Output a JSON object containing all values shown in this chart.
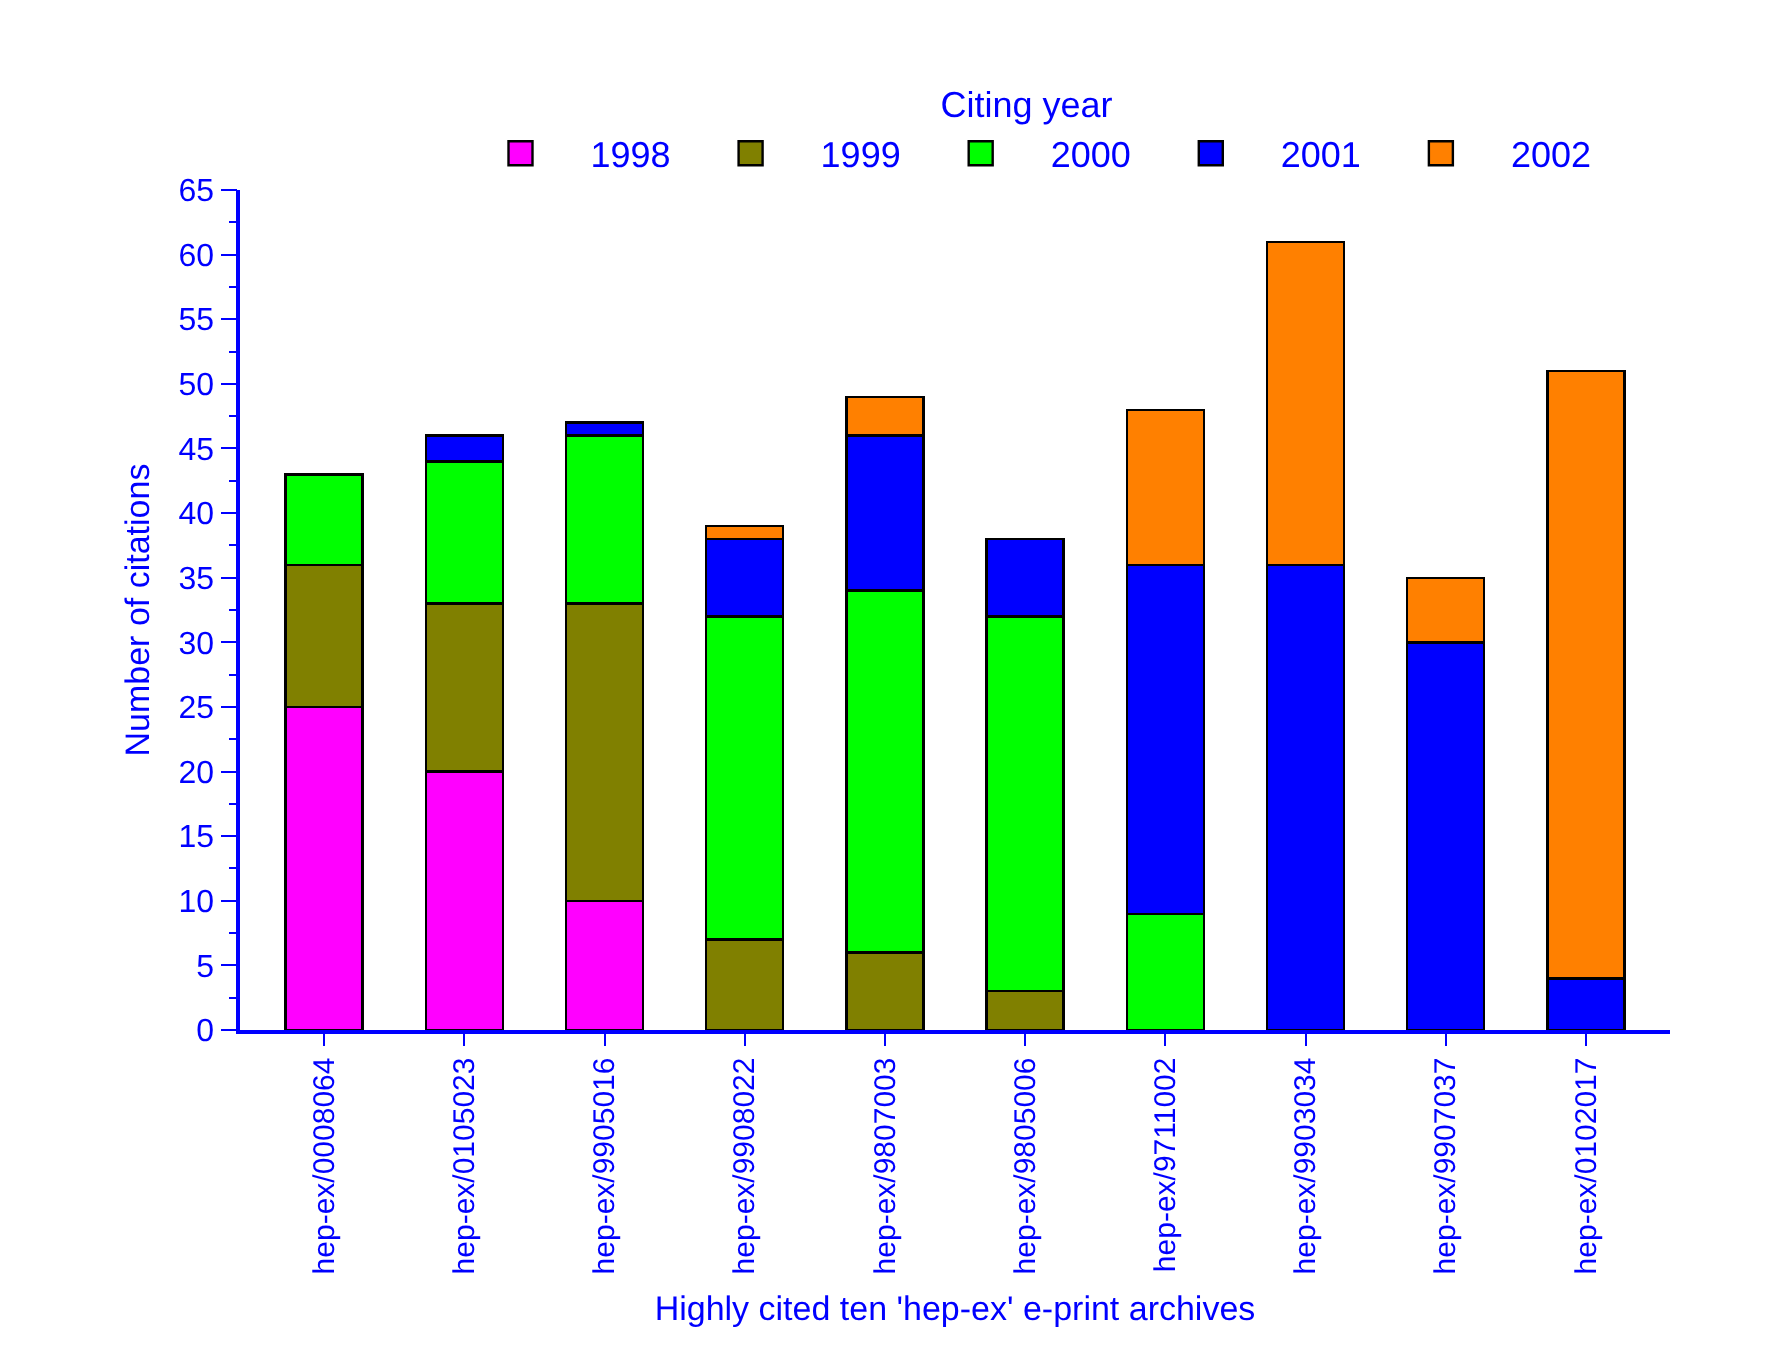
{
  "chart_data": {
    "type": "bar",
    "stacked": true,
    "xlabel": "Highly cited ten 'hep-ex' e-print archives",
    "ylabel": "Number of citations",
    "legend_title": "Citing year",
    "legend": "top",
    "categories": [
      "hep-ex/0008064",
      "hep-ex/0105023",
      "hep-ex/9905016",
      "hep-ex/9908022",
      "hep-ex/9807003",
      "hep-ex/9805006",
      "hep-ex/9711002",
      "hep-ex/9903034",
      "hep-ex/9907037",
      "hep-ex/0102017"
    ],
    "series": [
      {
        "name": "1998",
        "color": "#ff00ff",
        "values": [
          25,
          20,
          10,
          null,
          null,
          null,
          null,
          null,
          null,
          null
        ]
      },
      {
        "name": "1999",
        "color": "#808000",
        "values": [
          11,
          13,
          23,
          7,
          6,
          3,
          null,
          null,
          null,
          null
        ]
      },
      {
        "name": "2000",
        "color": "#00ff00",
        "values": [
          7,
          11,
          13,
          25,
          28,
          29,
          9,
          null,
          null,
          null
        ]
      },
      {
        "name": "2001",
        "color": "#0000ff",
        "values": [
          null,
          2,
          1,
          6,
          12,
          6,
          27,
          36,
          30,
          4
        ]
      },
      {
        "name": "2002",
        "color": "#ff8000",
        "values": [
          null,
          null,
          null,
          1,
          3,
          null,
          12,
          25,
          5,
          47
        ]
      }
    ],
    "ylim": [
      0,
      65
    ],
    "yticks": [
      0,
      5,
      10,
      15,
      20,
      25,
      30,
      35,
      40,
      45,
      50,
      55,
      60,
      65
    ],
    "grid": false
  }
}
